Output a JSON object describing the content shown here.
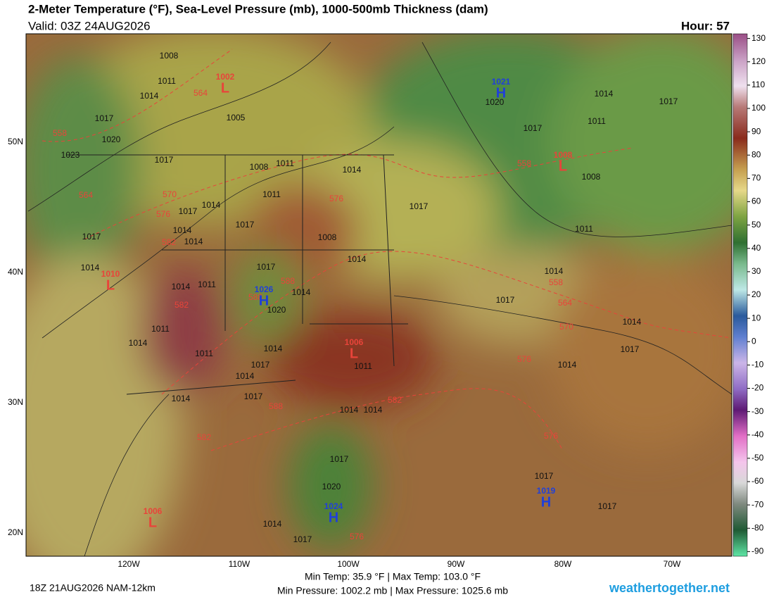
{
  "header": {
    "title": "2-Meter Temperature (°F), Sea-Level Pressure (mb), 1000-500mb Thickness (dam)",
    "valid": "Valid: 03Z 24AUG2026",
    "hour": "Hour: 57"
  },
  "map": {
    "lat_labels": [
      "50N",
      "40N",
      "30N",
      "20N"
    ],
    "lon_labels": [
      "120W",
      "110W",
      "100W",
      "90W",
      "80W",
      "70W"
    ],
    "isobar_labels": [
      "1008",
      "1011",
      "1014",
      "1017",
      "1020",
      "1023",
      "1005",
      "1017",
      "1008",
      "1011",
      "1014",
      "1011",
      "1014",
      "1017",
      "1017",
      "1014",
      "1014",
      "1017",
      "1008",
      "1014",
      "1014",
      "1017",
      "1014",
      "1011",
      "1014",
      "1020",
      "1011",
      "1014",
      "1014",
      "1011",
      "1017",
      "1011",
      "1014",
      "1017",
      "1014",
      "1014",
      "1014",
      "1017",
      "1020",
      "1014",
      "1017",
      "1020",
      "1017",
      "1011",
      "1014",
      "1017",
      "1008",
      "1017",
      "1011",
      "1014",
      "1017",
      "1014",
      "1017",
      "1014",
      "1017",
      "1017"
    ],
    "thickness_labels": [
      "564",
      "558",
      "564",
      "570",
      "576",
      "582",
      "558",
      "576",
      "588",
      "588",
      "582",
      "588",
      "582",
      "558",
      "564",
      "570",
      "576",
      "582",
      "576",
      "576"
    ],
    "centers": [
      {
        "letter": "L",
        "pressure": "1002"
      },
      {
        "letter": "L",
        "pressure": "1008"
      },
      {
        "letter": "L",
        "pressure": "1010"
      },
      {
        "letter": "L",
        "pressure": "1006"
      },
      {
        "letter": "L",
        "pressure": "1006"
      },
      {
        "letter": "H",
        "pressure": "1021"
      },
      {
        "letter": "H",
        "pressure": "1026"
      },
      {
        "letter": "H",
        "pressure": "1024"
      },
      {
        "letter": "H",
        "pressure": "1019"
      }
    ]
  },
  "colorbar": {
    "lim": [
      -92,
      132
    ],
    "ticks": [
      130,
      120,
      110,
      100,
      90,
      80,
      70,
      60,
      50,
      40,
      30,
      20,
      10,
      0,
      -10,
      -20,
      -30,
      -40,
      -50,
      -60,
      -70,
      -80,
      -90
    ]
  },
  "footer": {
    "run": "18Z 21AUG2026 NAM-12km",
    "temps": "Min Temp:  35.9 °F | Max Temp: 103.0 °F",
    "pressures": "Min Pressure: 1002.2 mb | Max Pressure: 1025.6 mb",
    "site": "weathertogether.net"
  }
}
